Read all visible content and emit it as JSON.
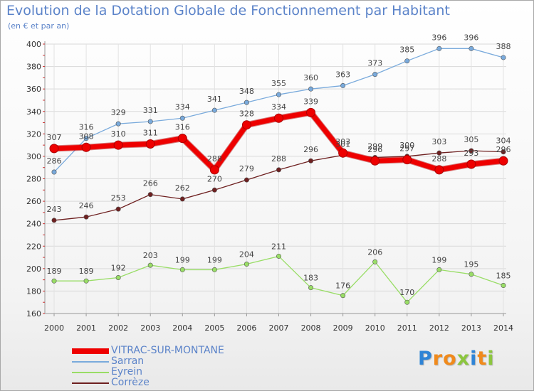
{
  "title": "Evolution de la Dotation Globale de Fonctionnement par Habitant",
  "subtitle": "(en € et par an)",
  "logo": {
    "letters": [
      {
        "ch": "P",
        "color": "#2f84d6"
      },
      {
        "ch": "r",
        "color": "#f08a1c"
      },
      {
        "ch": "o",
        "color": "#f08a1c"
      },
      {
        "ch": "x",
        "color": "#8cc63f"
      },
      {
        "ch": "i",
        "color": "#2f84d6"
      },
      {
        "ch": "t",
        "color": "#f08a1c"
      },
      {
        "ch": "i",
        "color": "#8cc63f"
      }
    ]
  },
  "chart_data": {
    "type": "line",
    "title": "Evolution de la Dotation Globale de Fonctionnement par Habitant",
    "subtitle": "(en € et par an)",
    "xlabel": "",
    "ylabel": "",
    "ylim": [
      160,
      400
    ],
    "yticks": [
      160,
      180,
      200,
      220,
      240,
      260,
      280,
      300,
      320,
      340,
      360,
      380,
      400
    ],
    "grid": true,
    "legend_position": "bottom-left",
    "x": [
      "2000",
      "2001",
      "2002",
      "2003",
      "2004",
      "2005",
      "2006",
      "2007",
      "2008",
      "2009",
      "2010",
      "2011",
      "2012",
      "2013",
      "2014"
    ],
    "series": [
      {
        "name": "VITRAC-SUR-MONTANE",
        "color": "#ee0000",
        "highlight": true,
        "values": [
          307,
          308,
          310,
          311,
          316,
          288,
          328,
          334,
          339,
          303,
          296,
          297,
          288,
          293,
          296
        ]
      },
      {
        "name": "Sarran",
        "color": "#79aadc",
        "values": [
          286,
          316,
          329,
          331,
          334,
          341,
          348,
          355,
          360,
          363,
          373,
          385,
          396,
          396,
          388
        ]
      },
      {
        "name": "Eyrein",
        "color": "#99dd66",
        "values": [
          189,
          189,
          192,
          203,
          199,
          199,
          204,
          211,
          183,
          176,
          206,
          170,
          199,
          195,
          185
        ]
      },
      {
        "name": "Corrèze",
        "color": "#6e2020",
        "values": [
          243,
          246,
          253,
          266,
          262,
          270,
          279,
          288,
          296,
          301,
          299,
          300,
          303,
          305,
          304
        ]
      }
    ]
  }
}
